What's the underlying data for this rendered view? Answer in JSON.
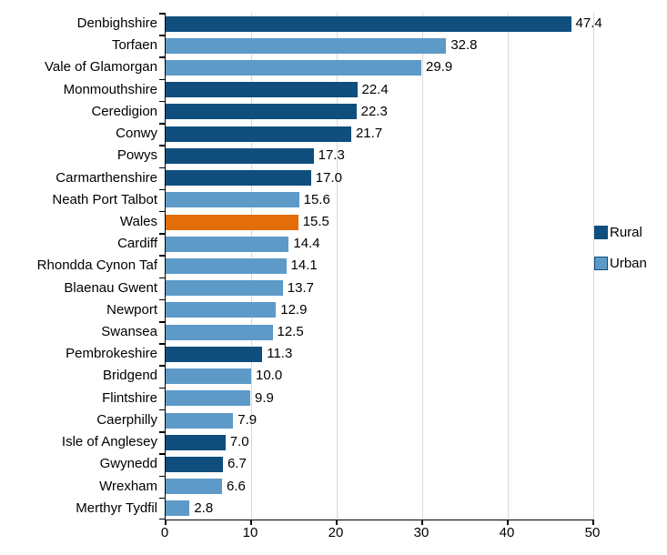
{
  "chart_data": {
    "type": "bar",
    "orientation": "horizontal",
    "title": "",
    "xlabel": "",
    "ylabel": "",
    "xlim": [
      0,
      50
    ],
    "xticks": [
      0,
      10,
      20,
      30,
      40,
      50
    ],
    "grid": "vertical-light-gray",
    "legend_position": "right-middle",
    "legend": [
      {
        "label": "Rural",
        "color_key": "rural"
      },
      {
        "label": "Urban",
        "color_key": "urban"
      }
    ],
    "colors": {
      "rural": "#104e7d",
      "urban": "#5d9ac8",
      "wales": "#e36d09",
      "gridline": "#d9d9d9",
      "axis": "#000000",
      "text": "#000000"
    },
    "bars": [
      {
        "label": "Denbighshire",
        "value": 47.4,
        "display": "47.4",
        "group": "rural"
      },
      {
        "label": "Torfaen",
        "value": 32.8,
        "display": "32.8",
        "group": "urban"
      },
      {
        "label": "Vale of Glamorgan",
        "value": 29.9,
        "display": "29.9",
        "group": "urban"
      },
      {
        "label": "Monmouthshire",
        "value": 22.4,
        "display": "22.4",
        "group": "rural"
      },
      {
        "label": "Ceredigion",
        "value": 22.3,
        "display": "22.3",
        "group": "rural"
      },
      {
        "label": "Conwy",
        "value": 21.7,
        "display": "21.7",
        "group": "rural"
      },
      {
        "label": "Powys",
        "value": 17.3,
        "display": "17.3",
        "group": "rural"
      },
      {
        "label": "Carmarthenshire",
        "value": 17.0,
        "display": "17.0",
        "group": "rural"
      },
      {
        "label": "Neath Port Talbot",
        "value": 15.6,
        "display": "15.6",
        "group": "urban"
      },
      {
        "label": "Wales",
        "value": 15.5,
        "display": "15.5",
        "group": "wales"
      },
      {
        "label": "Cardiff",
        "value": 14.4,
        "display": "14.4",
        "group": "urban"
      },
      {
        "label": "Rhondda Cynon Taf",
        "value": 14.1,
        "display": "14.1",
        "group": "urban"
      },
      {
        "label": "Blaenau Gwent",
        "value": 13.7,
        "display": "13.7",
        "group": "urban"
      },
      {
        "label": "Newport",
        "value": 12.9,
        "display": "12.9",
        "group": "urban"
      },
      {
        "label": "Swansea",
        "value": 12.5,
        "display": "12.5",
        "group": "urban"
      },
      {
        "label": "Pembrokeshire",
        "value": 11.3,
        "display": "11.3",
        "group": "rural"
      },
      {
        "label": "Bridgend",
        "value": 10.0,
        "display": "10.0",
        "group": "urban"
      },
      {
        "label": "Flintshire",
        "value": 9.9,
        "display": "9.9",
        "group": "urban"
      },
      {
        "label": "Caerphilly",
        "value": 7.9,
        "display": "7.9",
        "group": "urban"
      },
      {
        "label": "Isle of Anglesey",
        "value": 7.0,
        "display": "7.0",
        "group": "rural"
      },
      {
        "label": "Gwynedd",
        "value": 6.7,
        "display": "6.7",
        "group": "rural"
      },
      {
        "label": "Wrexham",
        "value": 6.6,
        "display": "6.6",
        "group": "urban"
      },
      {
        "label": "Merthyr Tydfil",
        "value": 2.8,
        "display": "2.8",
        "group": "urban"
      }
    ]
  }
}
